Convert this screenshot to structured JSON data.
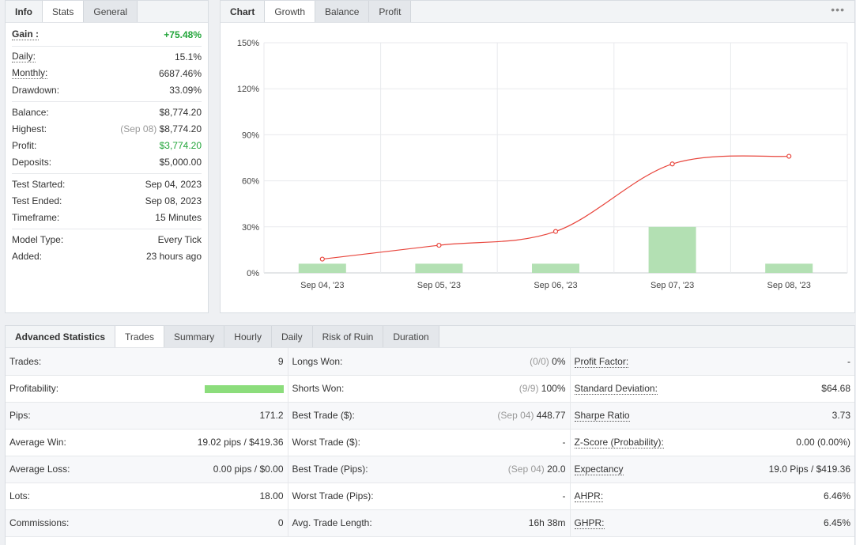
{
  "stats_tabs": [
    {
      "label": "Info"
    },
    {
      "label": "Stats"
    },
    {
      "label": "General"
    }
  ],
  "stats": {
    "gain": {
      "label": "Gain :",
      "value": "+75.48%"
    },
    "daily": {
      "label": "Daily:",
      "value": "15.1%"
    },
    "monthly": {
      "label": "Monthly:",
      "value": "6687.46%"
    },
    "drawdown": {
      "label": "Drawdown:",
      "value": "33.09%"
    },
    "balance": {
      "label": "Balance:",
      "value": "$8,774.20"
    },
    "highest": {
      "label": "Highest:",
      "date": "(Sep 08)",
      "value": "$8,774.20"
    },
    "profit": {
      "label": "Profit:",
      "value": "$3,774.20"
    },
    "deposits": {
      "label": "Deposits:",
      "value": "$5,000.00"
    },
    "test_started": {
      "label": "Test Started:",
      "value": "Sep 04, 2023"
    },
    "test_ended": {
      "label": "Test Ended:",
      "value": "Sep 08, 2023"
    },
    "timeframe": {
      "label": "Timeframe:",
      "value": "15 Minutes"
    },
    "model_type": {
      "label": "Model Type:",
      "value": "Every Tick"
    },
    "added": {
      "label": "Added:",
      "value": "23 hours ago"
    }
  },
  "chart_tabs": [
    {
      "label": "Chart"
    },
    {
      "label": "Growth"
    },
    {
      "label": "Balance"
    },
    {
      "label": "Profit"
    }
  ],
  "more_icon": "ellipsis-icon",
  "chart_data": {
    "type": "line",
    "categories": [
      "Sep 04, '23",
      "Sep 05, '23",
      "Sep 06, '23",
      "Sep 07, '23",
      "Sep 08, '23"
    ],
    "y_ticks": [
      "0%",
      "30%",
      "60%",
      "90%",
      "120%",
      "150%"
    ],
    "ylim": [
      0,
      150
    ],
    "grid": true,
    "series": [
      {
        "kind": "bar",
        "color": "#b3e0b3",
        "values": [
          6,
          6,
          6,
          30,
          6
        ]
      },
      {
        "kind": "line",
        "color": "#e8453c",
        "values": [
          9,
          18,
          27,
          71,
          76
        ]
      }
    ]
  },
  "adv_tabs": [
    {
      "label": "Advanced Statistics"
    },
    {
      "label": "Trades"
    },
    {
      "label": "Summary"
    },
    {
      "label": "Hourly"
    },
    {
      "label": "Daily"
    },
    {
      "label": "Risk of Ruin"
    },
    {
      "label": "Duration"
    }
  ],
  "adv": {
    "rows": [
      {
        "c1": {
          "label": "Trades:",
          "value": "9"
        },
        "c2": {
          "label": "Longs Won:",
          "note": "(0/0)",
          "value": "0%"
        },
        "c3": {
          "label": "Profit Factor:",
          "value": "-"
        }
      },
      {
        "c1": {
          "label": "Profitability:",
          "bar": 1.0
        },
        "c2": {
          "label": "Shorts Won:",
          "note": "(9/9)",
          "value": "100%"
        },
        "c3": {
          "label": "Standard Deviation:",
          "value": "$64.68"
        }
      },
      {
        "c1": {
          "label": "Pips:",
          "value": "171.2"
        },
        "c2": {
          "label": "Best Trade ($):",
          "note": "(Sep 04)",
          "value": "448.77"
        },
        "c3": {
          "label": "Sharpe Ratio",
          "value": "3.73"
        }
      },
      {
        "c1": {
          "label": "Average Win:",
          "value": "19.02 pips / $419.36"
        },
        "c2": {
          "label": "Worst Trade ($):",
          "note": "",
          "value": "-"
        },
        "c3": {
          "label": "Z-Score (Probability):",
          "value": "0.00 (0.00%)"
        }
      },
      {
        "c1": {
          "label": "Average Loss:",
          "value": "0.00 pips / $0.00"
        },
        "c2": {
          "label": "Best Trade (Pips):",
          "note": "(Sep 04)",
          "value": "20.0"
        },
        "c3": {
          "label": "Expectancy",
          "value": "19.0 Pips / $419.36"
        }
      },
      {
        "c1": {
          "label": "Lots:",
          "value": "18.00"
        },
        "c2": {
          "label": "Worst Trade (Pips):",
          "note": "",
          "value": "-"
        },
        "c3": {
          "label": "AHPR:",
          "value": "6.46%"
        }
      },
      {
        "c1": {
          "label": "Commissions:",
          "value": "0"
        },
        "c2": {
          "label": "Avg. Trade Length:",
          "note": "",
          "value": "16h 38m"
        },
        "c3": {
          "label": "GHPR:",
          "value": "6.45%"
        }
      }
    ]
  },
  "colors": {
    "positive": "#22a53a",
    "bar_fill": "#8cdd7c",
    "line": "#e8453c"
  }
}
